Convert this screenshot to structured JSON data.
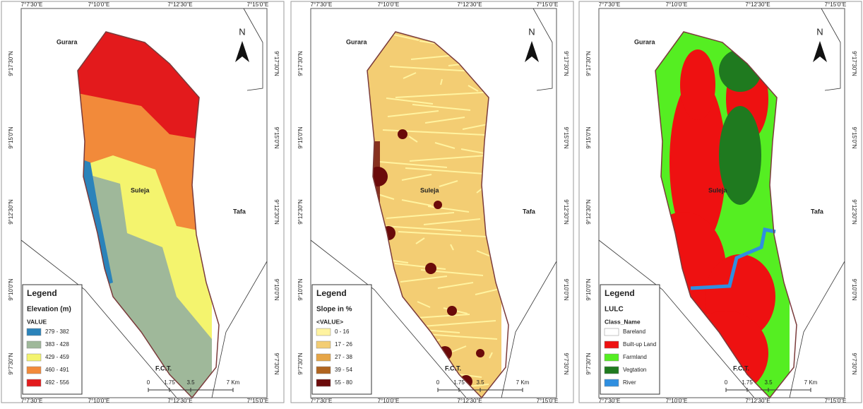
{
  "panels": [
    {
      "top_ticks": [
        "7°7'30\"E",
        "7°10'0\"E",
        "7°12'30\"E",
        "7°15'0\"E"
      ],
      "bottom_ticks": [
        "7°7'30\"E",
        "7°10'0\"E",
        "7°12'30\"E",
        "7°15'0\"E"
      ],
      "left_ticks": [
        "9°17'30\"N",
        "9°15'0\"N",
        "9°12'30\"N",
        "9°10'0\"N",
        "9°7'30\"N"
      ],
      "right_ticks": [
        "9°17'30\"N",
        "9°15'0\"N",
        "9°12'30\"N",
        "9°10'0\"N",
        "9°7'30\"N"
      ],
      "places": [
        "Gurara",
        "Suleja",
        "Tafa",
        "F.C.T."
      ],
      "north": "N",
      "legend": {
        "title": "Legend",
        "subtitle": "Elevation (m)",
        "field": "VALUE",
        "items": [
          {
            "label": "279 - 382",
            "color": "#2b83ba"
          },
          {
            "label": "383 - 428",
            "color": "#9fb89a"
          },
          {
            "label": "429 - 459",
            "color": "#f4f46e"
          },
          {
            "label": "460 - 491",
            "color": "#f28a3a"
          },
          {
            "label": "492 - 556",
            "color": "#e31a1c"
          }
        ]
      },
      "scale": [
        "0",
        "1.75",
        "3.5",
        "7 Km"
      ]
    },
    {
      "top_ticks": [
        "7°7'30\"E",
        "7°10'0\"E",
        "7°12'30\"E",
        "7°15'0\"E"
      ],
      "bottom_ticks": [
        "7°7'30\"E",
        "7°10'0\"E",
        "7°12'30\"E",
        "7°15'0\"E"
      ],
      "left_ticks": [
        "9°17'30\"N",
        "9°15'0\"N",
        "9°12'30\"N",
        "9°10'0\"N",
        "9°7'30\"N"
      ],
      "right_ticks": [
        "9°17'30\"N",
        "9°15'0\"N",
        "9°12'30\"N",
        "9°10'0\"N",
        "9°7'30\"N"
      ],
      "places": [
        "Gurara",
        "Suleja",
        "Tafa",
        "F.C.T."
      ],
      "north": "N",
      "legend": {
        "title": "Legend",
        "subtitle": "Slope in %",
        "field": "<VALUE>",
        "items": [
          {
            "label": "0 - 16",
            "color": "#fff3a0"
          },
          {
            "label": "17 - 26",
            "color": "#f3cd73"
          },
          {
            "label": "27 - 38",
            "color": "#e6a546"
          },
          {
            "label": "39 - 54",
            "color": "#b0641f"
          },
          {
            "label": "55 - 80",
            "color": "#6b0a0a"
          }
        ]
      },
      "scale": [
        "0",
        "1.75",
        "3.5",
        "7 Km"
      ]
    },
    {
      "top_ticks": [
        "7°7'30\"E",
        "7°10'0\"E",
        "7°12'30\"E",
        "7°15'0\"E"
      ],
      "bottom_ticks": [
        "7°7'30\"E",
        "7°10'0\"E",
        "7°12'30\"E",
        "7°15'0\"E"
      ],
      "left_ticks": [
        "9°17'30\"N",
        "9°15'0\"N",
        "9°12'30\"N",
        "9°10'0\"N",
        "9°7'30\"N"
      ],
      "right_ticks": [
        "9°17'30\"N",
        "9°15'0\"N",
        "9°12'30\"N",
        "9°10'0\"N",
        "9°7'30\"N"
      ],
      "places": [
        "Gurara",
        "Suleja",
        "Tafa",
        "F.C.T."
      ],
      "north": "N",
      "legend": {
        "title": "Legend",
        "subtitle": "LULC",
        "field": "Class_Name",
        "items": [
          {
            "label": "Bareland",
            "color": "#ffffff"
          },
          {
            "label": "Built-up Land",
            "color": "#ee1111"
          },
          {
            "label": "Farmland",
            "color": "#55ee22"
          },
          {
            "label": "Vegtation",
            "color": "#1f7a1f"
          },
          {
            "label": "River",
            "color": "#2f8fe0"
          }
        ]
      },
      "scale": [
        "0",
        "1.75",
        "3.5",
        "7 Km"
      ]
    }
  ]
}
